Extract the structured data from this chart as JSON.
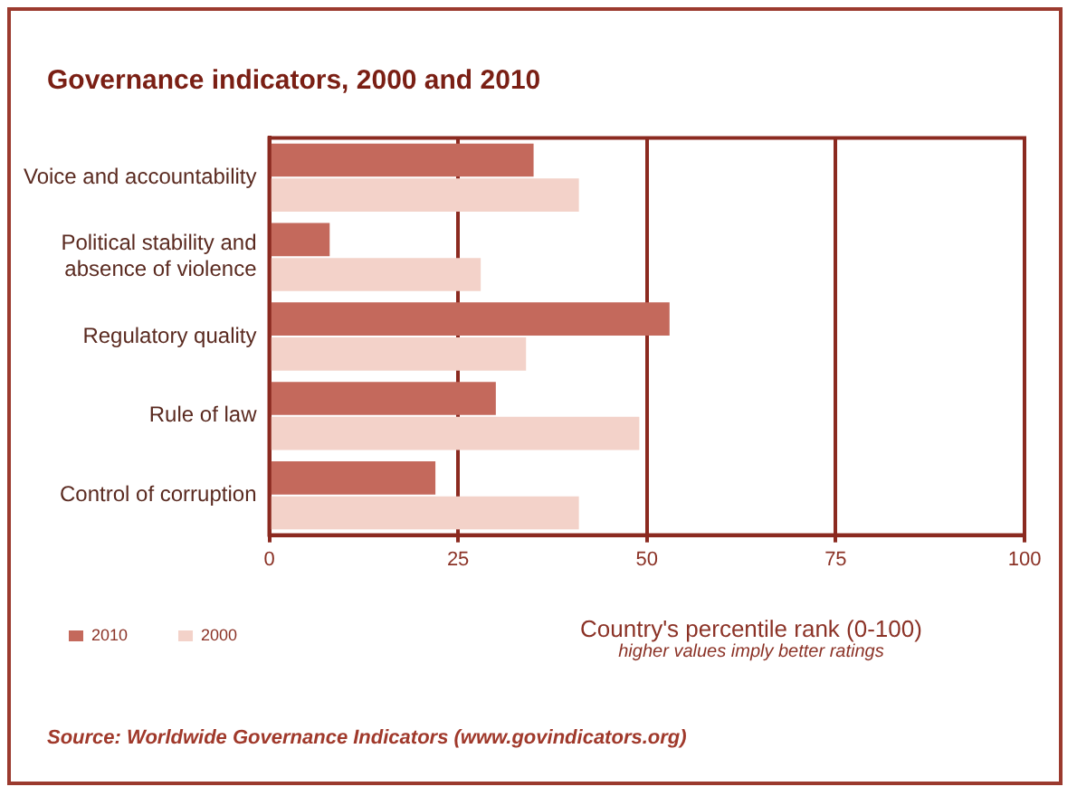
{
  "chart_data": {
    "type": "bar",
    "orientation": "horizontal",
    "title": "Governance indicators, 2000 and 2010",
    "categories": [
      "Voice and accountability",
      "Political stability and absence of violence",
      "Regulatory quality",
      "Rule of law",
      "Control of corruption"
    ],
    "series": [
      {
        "name": "2010",
        "color": "#c4695c",
        "values": [
          35,
          8,
          53,
          30,
          22
        ]
      },
      {
        "name": "2000",
        "color": "#f3d2c9",
        "values": [
          41,
          28,
          34,
          49,
          41
        ]
      }
    ],
    "xlim": [
      0,
      100
    ],
    "xticks": [
      0,
      25,
      50,
      75,
      100
    ],
    "grid": "x",
    "legend": "bottom left",
    "xlabel": "Country's percentile rank (0-100)",
    "annotations": [
      "higher values imply better ratings",
      "Source: Worldwide Governance Indicators (www.govindicators.org)"
    ]
  }
}
